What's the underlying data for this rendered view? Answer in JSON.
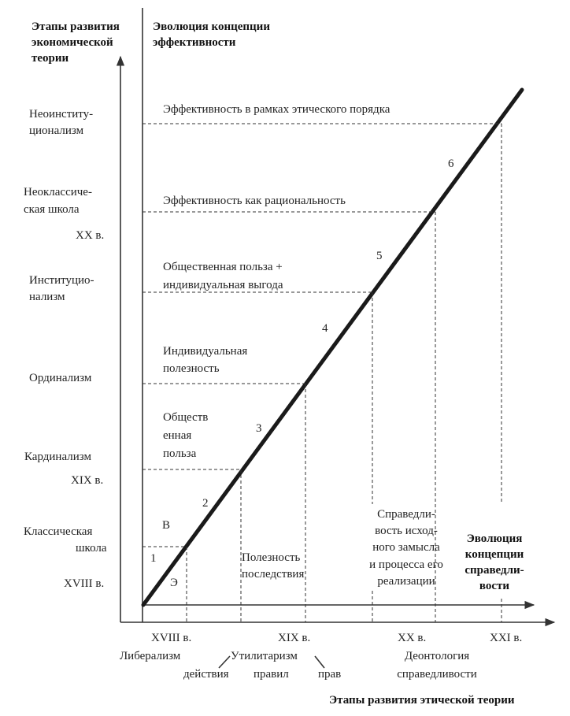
{
  "headers": {
    "stages_econ": [
      "Этапы развития",
      "экономической",
      "теории"
    ],
    "evolution_eff": [
      "Эволюция концепции",
      "эффективности"
    ],
    "evolution_justice": [
      "Эволюция",
      "концепции",
      "справедли-",
      "вости"
    ],
    "stages_ethics": "Этапы развития этической теории"
  },
  "y_labels": [
    [
      "Неоинститу-",
      "ционализм"
    ],
    [
      "Неоклассиче-",
      "ская школа"
    ],
    [
      "XX в."
    ],
    [
      "Институцио-",
      "нализм"
    ],
    [
      "Ординализм"
    ],
    [
      "Кардинализм"
    ],
    [
      "XIX в."
    ],
    [
      "Классическая",
      "школа"
    ],
    [
      "XVIII в."
    ]
  ],
  "efficiency_levels": [
    [
      "Эффективность в рамках этического порядка"
    ],
    [
      "Эффективность как рациональность"
    ],
    [
      "Общественная польза +",
      "индивидуальная выгода"
    ],
    [
      "Индивидуальная",
      "полезность"
    ],
    [
      "Обществ",
      "енная",
      "польза"
    ]
  ],
  "segment_numbers": [
    "1",
    "2",
    "3",
    "4",
    "5",
    "6"
  ],
  "region_letters": {
    "above": "В",
    "below": "Э"
  },
  "justice_labels": [
    [
      "Полезность",
      "последствия"
    ],
    [
      "Справедли-",
      "вость исход-",
      "ного замысла",
      "и процесса его",
      "реализации"
    ]
  ],
  "x_centuries": [
    "XVIII в.",
    "XIX в.",
    "XX в.",
    "XXI в."
  ],
  "x_doctrines": {
    "liberalism": "Либерализм",
    "utilitarianism": "Утилитаризм",
    "acts": "действия",
    "rules": "правил",
    "rights": "прав",
    "deontology": [
      "Деонтология",
      "справедливости"
    ]
  }
}
